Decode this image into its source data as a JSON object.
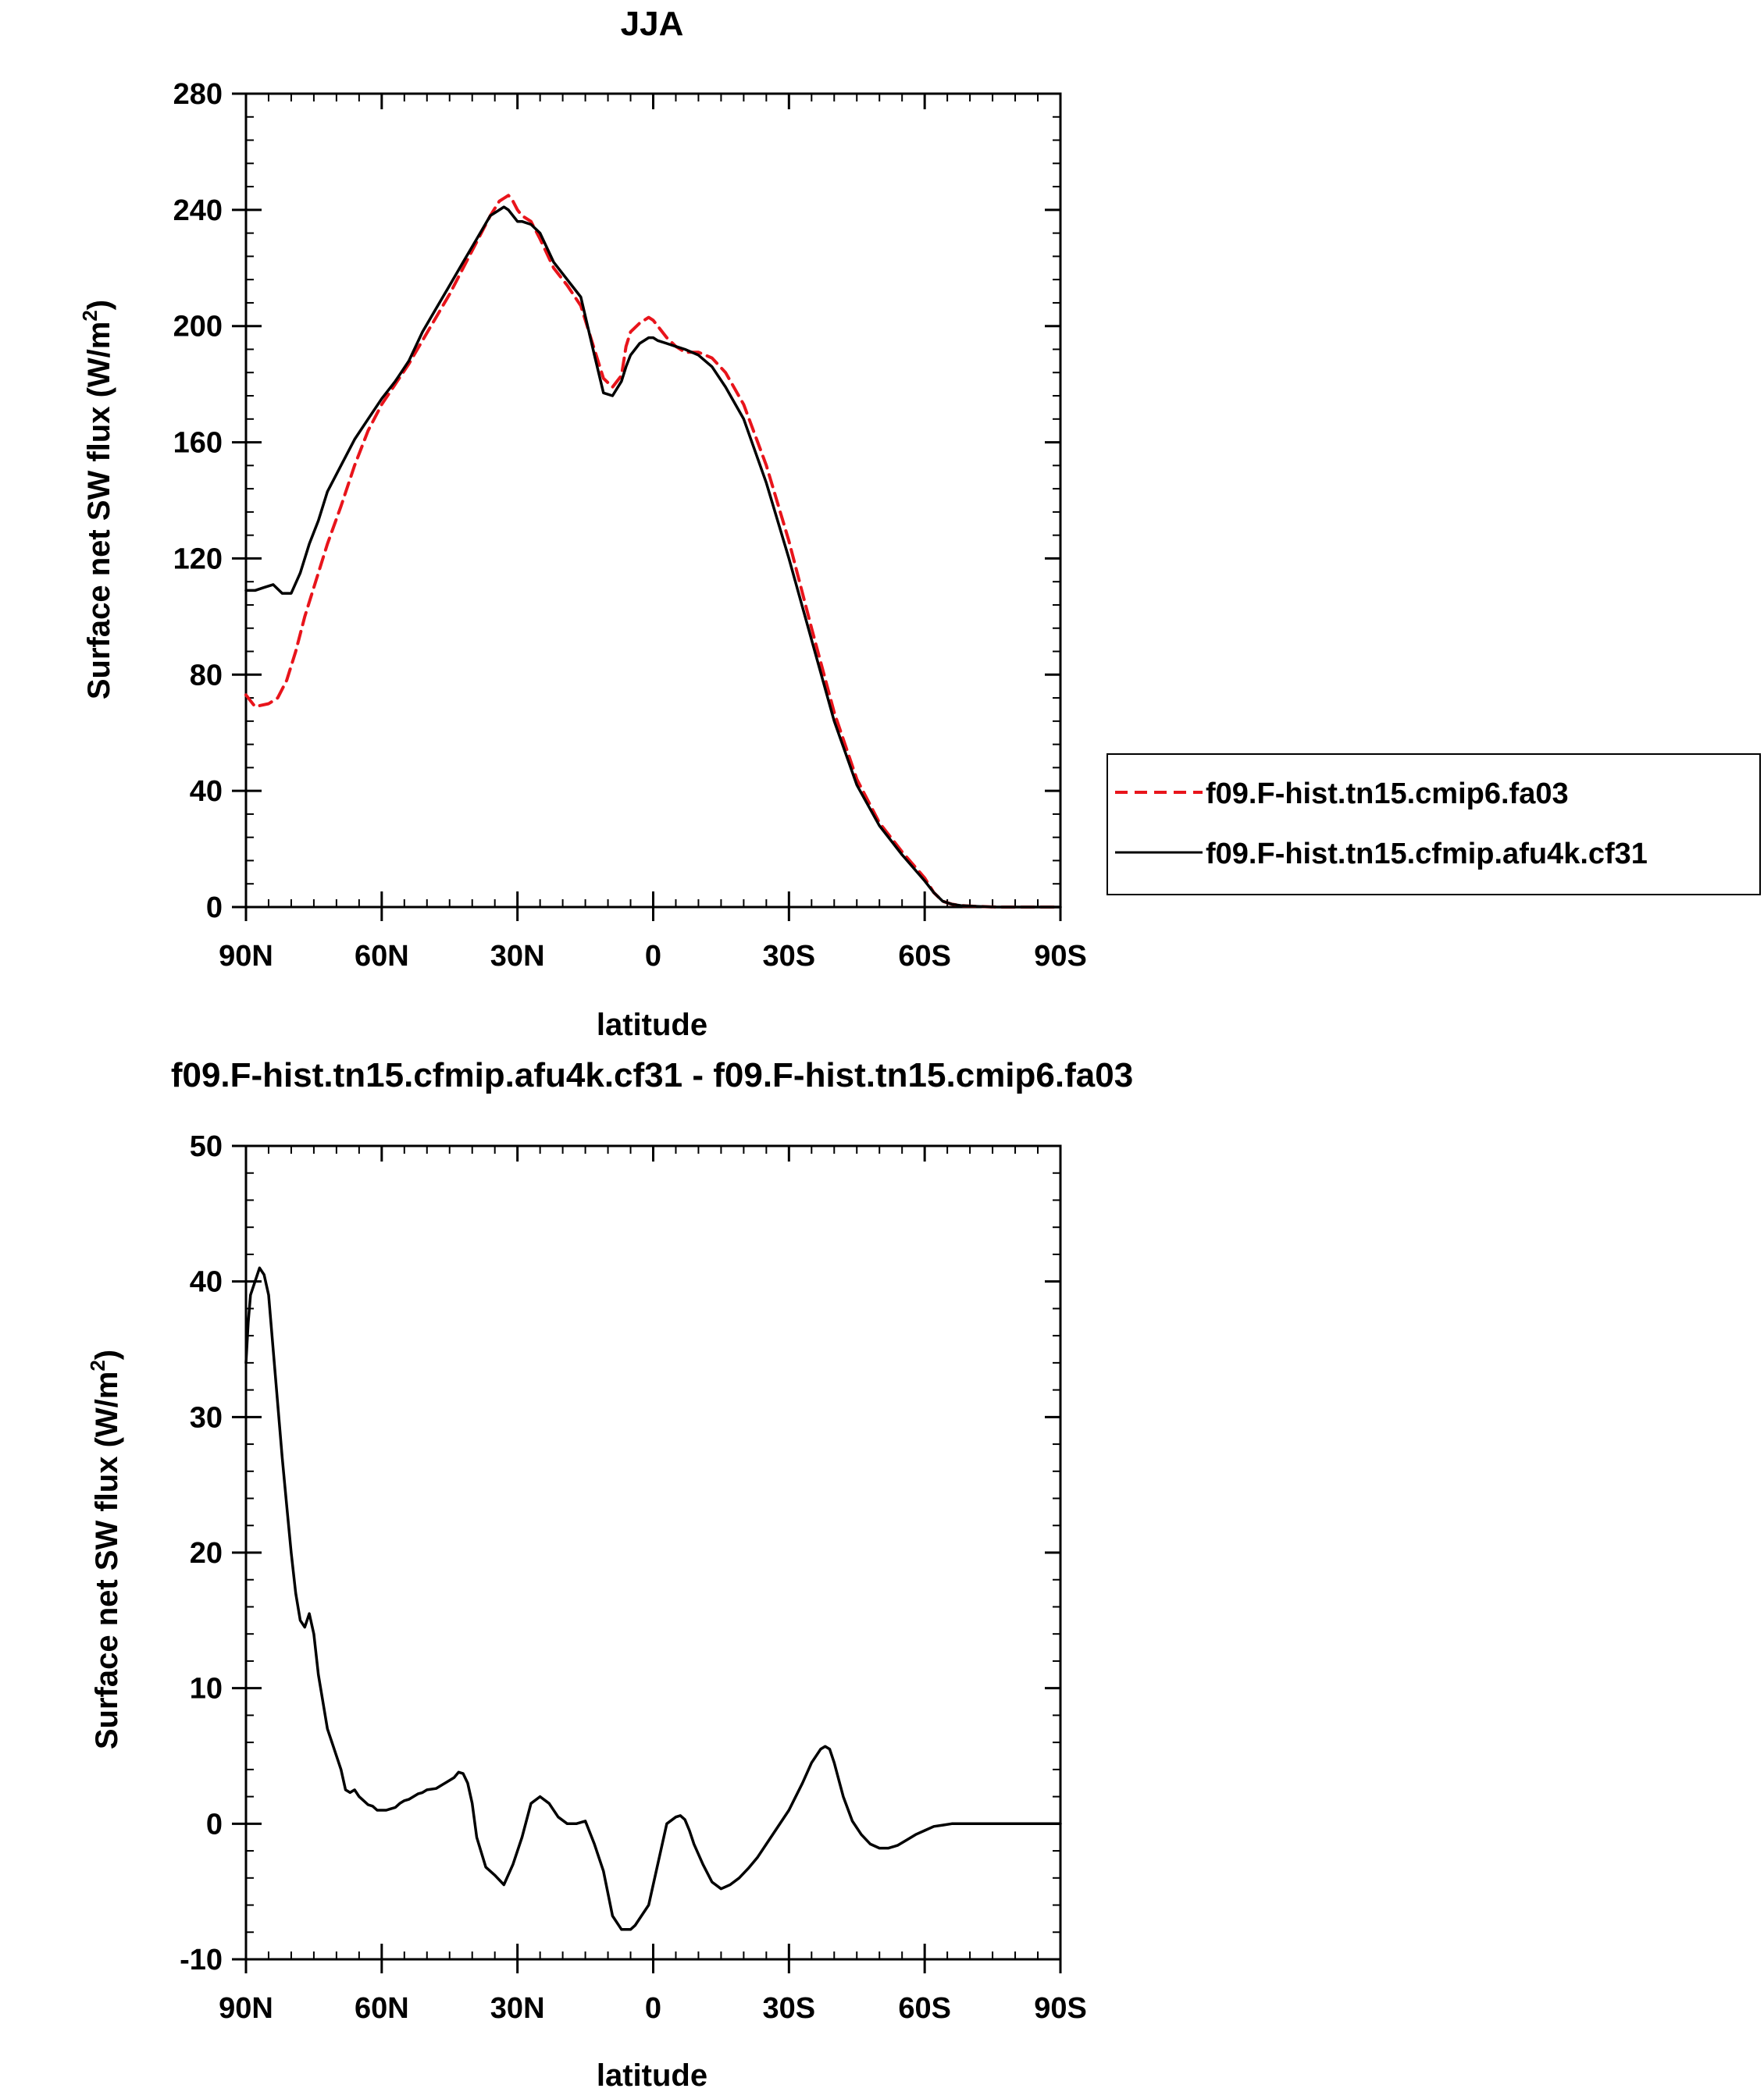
{
  "chart_data": [
    {
      "type": "line",
      "title": "JJA",
      "xlabel": "latitude",
      "ylabel": "Surface net SW flux (W/m²)",
      "ylabel_parts": {
        "main": "Surface net SW flux (W/m",
        "sup": "2",
        "end": ")"
      },
      "xlim": [
        90,
        -90
      ],
      "ylim": [
        0,
        280
      ],
      "xticks": [
        {
          "value": 90,
          "label": "90N"
        },
        {
          "value": 60,
          "label": "60N"
        },
        {
          "value": 30,
          "label": "30N"
        },
        {
          "value": 0,
          "label": "0"
        },
        {
          "value": -30,
          "label": "30S"
        },
        {
          "value": -60,
          "label": "60S"
        },
        {
          "value": -90,
          "label": "90S"
        }
      ],
      "yticks": [
        {
          "value": 0,
          "label": "0"
        },
        {
          "value": 40,
          "label": "40"
        },
        {
          "value": 80,
          "label": "80"
        },
        {
          "value": 120,
          "label": "120"
        },
        {
          "value": 160,
          "label": "160"
        },
        {
          "value": 200,
          "label": "200"
        },
        {
          "value": 240,
          "label": "240"
        },
        {
          "value": 280,
          "label": "280"
        }
      ],
      "legend_position": "right",
      "series": [
        {
          "name": "f09.F-hist.tn15.cmip6.fa03",
          "color": "#e8141b",
          "dash": true,
          "x": [
            90,
            89,
            88,
            85,
            83,
            81,
            79,
            77,
            75,
            72,
            69,
            66,
            63,
            60,
            57,
            54,
            51,
            48,
            45,
            42,
            39,
            36,
            34,
            33,
            32,
            31,
            30,
            29,
            27,
            25,
            22,
            19,
            16,
            13,
            11,
            9,
            7,
            6,
            5,
            3,
            1,
            0,
            -1,
            -3,
            -5,
            -7,
            -10,
            -13,
            -16,
            -20,
            -25,
            -30,
            -35,
            -40,
            -45,
            -50,
            -55,
            -60,
            -62,
            -64,
            -66,
            -68,
            -72,
            -76,
            -80,
            -85,
            -90
          ],
          "y": [
            73,
            71,
            69,
            70,
            72,
            78,
            88,
            100,
            110,
            125,
            138,
            152,
            164,
            173,
            180,
            187,
            195,
            203,
            211,
            220,
            229,
            238,
            243,
            244,
            245,
            243,
            240,
            238,
            236,
            230,
            220,
            214,
            207,
            192,
            182,
            179,
            183,
            193,
            198,
            201,
            203,
            202,
            200,
            196,
            193,
            191,
            191,
            189,
            184,
            173,
            152,
            126,
            96,
            67,
            44,
            29,
            19,
            10,
            5,
            2,
            1,
            0.5,
            0.2,
            0,
            0,
            0,
            0
          ]
        },
        {
          "name": "f09.F-hist.tn15.cfmip.afu4k.cf31",
          "color": "#000000",
          "dash": false,
          "x": [
            90,
            88,
            86,
            84,
            82,
            80,
            78,
            76,
            74,
            72,
            69,
            66,
            63,
            60,
            57,
            54,
            51,
            48,
            45,
            42,
            39,
            36,
            34,
            33,
            32,
            31,
            30,
            29,
            27,
            25,
            22,
            19,
            16,
            13,
            11,
            9,
            7,
            6,
            5,
            3,
            1,
            0,
            -1,
            -3,
            -5,
            -7,
            -10,
            -13,
            -16,
            -20,
            -25,
            -30,
            -35,
            -40,
            -45,
            -50,
            -55,
            -60,
            -62,
            -64,
            -66,
            -68,
            -72,
            -76,
            -80,
            -85,
            -90
          ],
          "y": [
            109,
            109,
            110,
            111,
            108,
            108,
            115,
            125,
            133,
            143,
            152,
            161,
            168,
            175,
            181,
            188,
            198,
            206,
            214,
            222,
            230,
            238,
            240,
            241,
            240,
            238,
            236,
            236,
            235,
            232,
            222,
            216,
            210,
            190,
            177,
            176,
            181,
            186,
            190,
            194,
            196,
            196,
            195,
            194,
            193,
            192,
            190,
            186,
            179,
            168,
            146,
            120,
            92,
            64,
            42,
            28,
            18,
            9,
            5,
            2,
            1,
            0.5,
            0.2,
            0,
            0,
            0,
            0
          ]
        }
      ]
    },
    {
      "type": "line",
      "title": "f09.F-hist.tn15.cfmip.afu4k.cf31 - f09.F-hist.tn15.cmip6.fa03",
      "xlabel": "latitude",
      "ylabel": "Surface net SW flux (W/m²)",
      "ylabel_parts": {
        "main": "Surface net SW flux (W/m",
        "sup": "2",
        "end": ")"
      },
      "xlim": [
        90,
        -90
      ],
      "ylim": [
        -10,
        50
      ],
      "xticks": [
        {
          "value": 90,
          "label": "90N"
        },
        {
          "value": 60,
          "label": "60N"
        },
        {
          "value": 30,
          "label": "30N"
        },
        {
          "value": 0,
          "label": "0"
        },
        {
          "value": -30,
          "label": "30S"
        },
        {
          "value": -60,
          "label": "60S"
        },
        {
          "value": -90,
          "label": "90S"
        }
      ],
      "yticks": [
        {
          "value": -10,
          "label": "-10"
        },
        {
          "value": 0,
          "label": "0"
        },
        {
          "value": 10,
          "label": "10"
        },
        {
          "value": 20,
          "label": "20"
        },
        {
          "value": 30,
          "label": "30"
        },
        {
          "value": 40,
          "label": "40"
        },
        {
          "value": 50,
          "label": "50"
        }
      ],
      "series": [
        {
          "name": "",
          "color": "#000000",
          "dash": false,
          "x": [
            90,
            89.5,
            89,
            88,
            87,
            86,
            85,
            84,
            83,
            82,
            81,
            80,
            79,
            78,
            77,
            76,
            75,
            74,
            73,
            72,
            71,
            70,
            69,
            68,
            67,
            66,
            65,
            64,
            63,
            62,
            61,
            60,
            59,
            58,
            57,
            56,
            55,
            54,
            53,
            52,
            51,
            50,
            48,
            46,
            44,
            43,
            42,
            41,
            40,
            39,
            37,
            35,
            33,
            31,
            30,
            29,
            27,
            25,
            23,
            21,
            19,
            17,
            15,
            13,
            11,
            9,
            7,
            5,
            4,
            3,
            1,
            -1,
            -3,
            -5,
            -6,
            -7,
            -8,
            -9,
            -11,
            -13,
            -15,
            -17,
            -19,
            -21,
            -23,
            -25,
            -27,
            -30,
            -33,
            -35,
            -37,
            -38,
            -39,
            -40,
            -42,
            -44,
            -46,
            -48,
            -50,
            -52,
            -54,
            -56,
            -58,
            -60,
            -62,
            -64,
            -66,
            -70,
            -80,
            -90
          ],
          "y": [
            34,
            37,
            39,
            40,
            41,
            40.5,
            39,
            35,
            31,
            27,
            23.5,
            20,
            17,
            15,
            14.5,
            15.5,
            14,
            11,
            9,
            7,
            6,
            5,
            4,
            2.5,
            2.3,
            2.5,
            2,
            1.7,
            1.4,
            1.3,
            1,
            1,
            1,
            1.1,
            1.2,
            1.5,
            1.7,
            1.8,
            2,
            2.2,
            2.3,
            2.5,
            2.6,
            3,
            3.4,
            3.8,
            3.7,
            3,
            1.5,
            -1,
            -3.2,
            -3.8,
            -4.5,
            -3,
            -2,
            -1,
            1.5,
            2,
            1.5,
            0.5,
            0,
            0,
            0.2,
            -1.5,
            -3.5,
            -6.8,
            -7.8,
            -7.8,
            -7.5,
            -7,
            -6,
            -3,
            0,
            0.5,
            0.6,
            0.3,
            -0.5,
            -1.5,
            -3,
            -4.3,
            -4.8,
            -4.5,
            -4,
            -3.3,
            -2.5,
            -1.5,
            -0.5,
            1,
            3,
            4.5,
            5.5,
            5.7,
            5.5,
            4.5,
            2,
            0.2,
            -0.8,
            -1.5,
            -1.8,
            -1.8,
            -1.6,
            -1.2,
            -0.8,
            -0.5,
            -0.2,
            -0.1,
            0,
            0,
            0,
            0
          ]
        }
      ]
    }
  ]
}
